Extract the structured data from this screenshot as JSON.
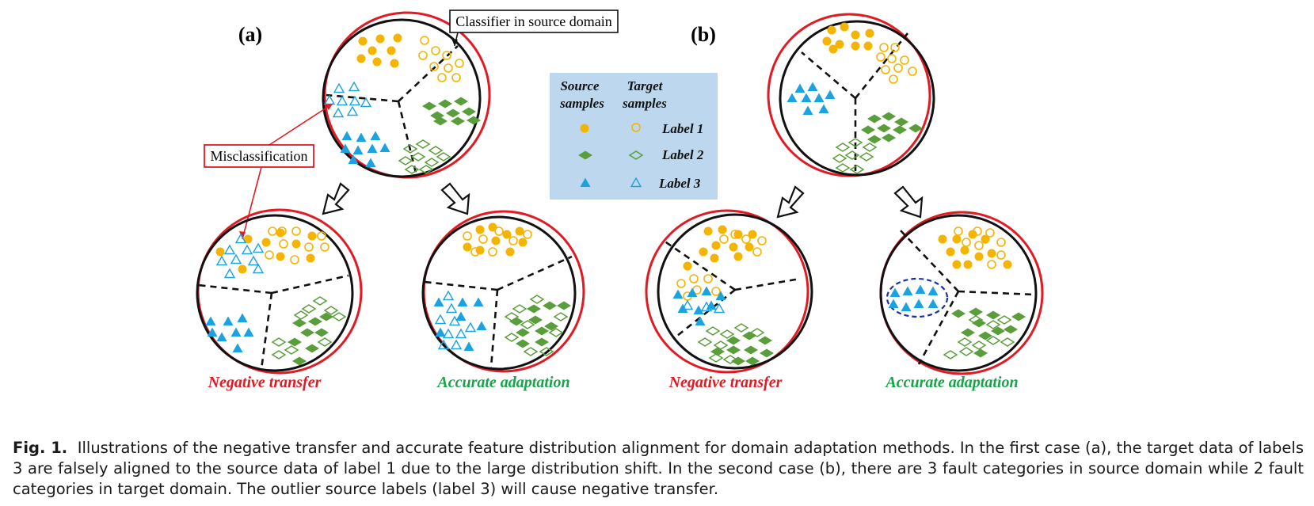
{
  "figure": {
    "panel_a_label": "(a)",
    "panel_b_label": "(b)",
    "callout_classifier": "Classifier in source domain",
    "callout_misclassification": "Misclassification",
    "legend": {
      "source_header_1": "Source",
      "source_header_2": "samples",
      "target_header_1": "Target",
      "target_header_2": "samples",
      "label_1": "Label 1",
      "label_2": "Label 2",
      "label_3": "Label 3"
    },
    "result_negative_a": "Negative transfer",
    "result_accurate_a": "Accurate adaptation",
    "result_negative_b": "Negative transfer",
    "result_accurate_b": "Accurate adaptation",
    "colors": {
      "label1": "#f5b400",
      "label2": "#5a9e3c",
      "label3": "#1aa3e0",
      "boundary": "#e01b24",
      "legend_bg": "#bdd7ee",
      "negative": "#e01b24",
      "accurate": "#19a34a"
    }
  },
  "caption": {
    "label": "Fig. 1.",
    "text": "Illustrations of the negative transfer and accurate feature distribution alignment for domain adaptation methods. In the first case (a), the target data of labels 3 are falsely aligned to the source data of label 1 due to the large distribution shift. In the second case (b), there are 3 fault categories in source domain while 2 fault categories in target domain. The outlier source labels (label 3) will cause negative transfer."
  }
}
